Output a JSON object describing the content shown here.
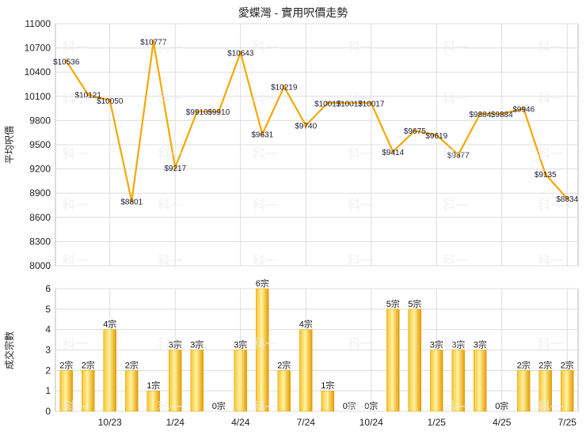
{
  "chart_data": [
    {
      "type": "line",
      "title": "愛蝶灣 - 實用呎價走勢",
      "ylabel": "平均呎價",
      "ylim": [
        8000,
        11000
      ],
      "yticks": [
        8000,
        8300,
        8600,
        8900,
        9200,
        9500,
        9800,
        10100,
        10400,
        10700,
        11000
      ],
      "grid": true,
      "line_color": "#f5a800",
      "points": [
        {
          "i": 0,
          "y": 10536,
          "label": "$10536"
        },
        {
          "i": 1,
          "y": 10121,
          "label": "$10121"
        },
        {
          "i": 2,
          "y": 10050,
          "label": "$10050"
        },
        {
          "i": 3,
          "y": 8801,
          "label": "$8801"
        },
        {
          "i": 4,
          "y": 10777,
          "label": "$10777"
        },
        {
          "i": 5,
          "y": 9217,
          "label": "$9217"
        },
        {
          "i": 6,
          "y": 9910,
          "label": "$9910"
        },
        {
          "i": 7,
          "y": 9910,
          "label": "$9910"
        },
        {
          "i": 8,
          "y": 10643,
          "label": "$10643"
        },
        {
          "i": 9,
          "y": 9631,
          "label": "$9631"
        },
        {
          "i": 10,
          "y": 10219,
          "label": "$10219"
        },
        {
          "i": 11,
          "y": 9740,
          "label": "$9740"
        },
        {
          "i": 12,
          "y": 10017,
          "label": "$10017"
        },
        {
          "i": 13,
          "y": 10017,
          "label": "$10017"
        },
        {
          "i": 14,
          "y": 10017,
          "label": "$10017"
        },
        {
          "i": 15,
          "y": 9414,
          "label": "$9414"
        },
        {
          "i": 16,
          "y": 9675,
          "label": "$9675"
        },
        {
          "i": 17,
          "y": 9619,
          "label": "$9619"
        },
        {
          "i": 18,
          "y": 9377,
          "label": "$9377"
        },
        {
          "i": 19,
          "y": 9884,
          "label": "$9884"
        },
        {
          "i": 20,
          "y": 9884,
          "label": "$9884"
        },
        {
          "i": 21,
          "y": 9946,
          "label": "$9946"
        },
        {
          "i": 22,
          "y": 9135,
          "label": "$9135"
        },
        {
          "i": 23,
          "y": 8834,
          "label": "$8834"
        }
      ]
    },
    {
      "type": "bar",
      "ylabel": "成交宗數",
      "ylim": [
        0,
        6
      ],
      "yticks": [
        0,
        1,
        2,
        3,
        4,
        5,
        6
      ],
      "grid": true,
      "bar_color": "#f5b400",
      "values": [
        2,
        2,
        4,
        2,
        1,
        3,
        3,
        0,
        3,
        6,
        2,
        4,
        1,
        0,
        0,
        5,
        5,
        3,
        3,
        3,
        0,
        2,
        2,
        2
      ],
      "labels": [
        "2宗",
        "2宗",
        "4宗",
        "2宗",
        "1宗",
        "3宗",
        "3宗",
        "0宗",
        "3宗",
        "6宗",
        "2宗",
        "4宗",
        "1宗",
        "0宗",
        "0宗",
        "5宗",
        "5宗",
        "3宗",
        "3宗",
        "3宗",
        "0宗",
        "2宗",
        "2宗",
        "2宗"
      ],
      "xticks": [
        {
          "i": 2,
          "label": "10/23"
        },
        {
          "i": 5,
          "label": "1/24"
        },
        {
          "i": 8,
          "label": "4/24"
        },
        {
          "i": 11,
          "label": "7/24"
        },
        {
          "i": 14,
          "label": "10/24"
        },
        {
          "i": 17,
          "label": "1/25"
        },
        {
          "i": 20,
          "label": "4/25"
        },
        {
          "i": 23,
          "label": "7/25"
        }
      ]
    }
  ],
  "watermark": "科一"
}
